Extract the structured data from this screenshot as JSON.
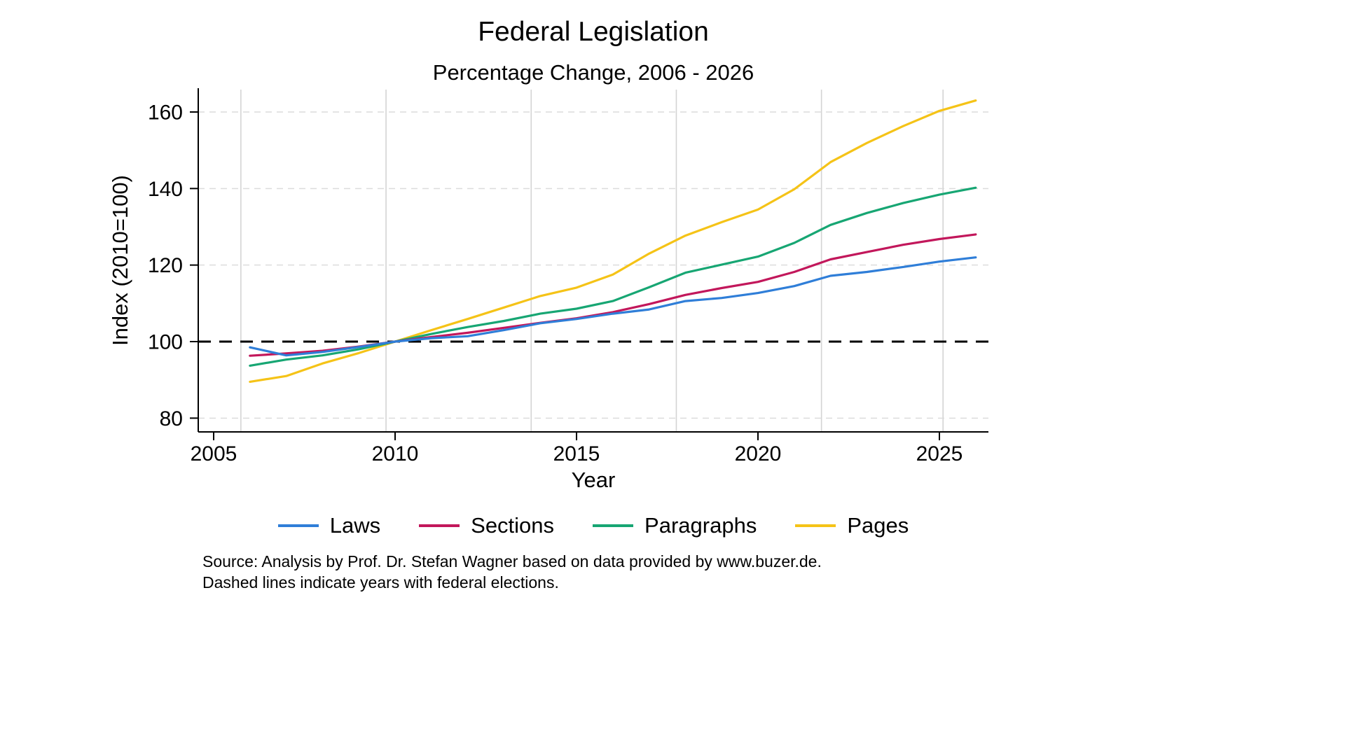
{
  "chart_data": {
    "type": "line",
    "title": "Federal Legislation",
    "subtitle": "Percentage Change, 2006 - 2026",
    "xlabel": "Year",
    "ylabel": "Index (2010=100)",
    "x": [
      2006,
      2007,
      2008,
      2009,
      2010,
      2011,
      2012,
      2013,
      2014,
      2015,
      2016,
      2017,
      2018,
      2019,
      2020,
      2021,
      2022,
      2023,
      2024,
      2025,
      2026
    ],
    "series": [
      {
        "name": "Laws",
        "color": "#2f7ed8",
        "values": [
          98.5,
          96.4,
          97.3,
          98.6,
          100,
          100.9,
          101.4,
          103.0,
          104.8,
          105.9,
          107.3,
          108.4,
          110.6,
          111.4,
          112.7,
          114.5,
          117.2,
          118.2,
          119.5,
          120.9,
          122.0
        ]
      },
      {
        "name": "Sections",
        "color": "#c2175b",
        "values": [
          96.3,
          96.9,
          97.6,
          98.7,
          100,
          101.2,
          102.3,
          103.6,
          104.9,
          106.1,
          107.7,
          109.8,
          112.2,
          114.0,
          115.6,
          118.2,
          121.5,
          123.4,
          125.3,
          126.8,
          128.0
        ]
      },
      {
        "name": "Paragraphs",
        "color": "#17a673",
        "values": [
          93.7,
          95.3,
          96.4,
          98.0,
          100,
          102.0,
          103.8,
          105.4,
          107.3,
          108.6,
          110.6,
          114.2,
          118.0,
          120.1,
          122.2,
          125.8,
          130.5,
          133.6,
          136.2,
          138.4,
          140.2
        ]
      },
      {
        "name": "Pages",
        "color": "#f5c317",
        "values": [
          89.5,
          91.0,
          94.3,
          97.0,
          100,
          103.0,
          105.9,
          108.9,
          111.9,
          114.1,
          117.5,
          123.0,
          127.7,
          131.2,
          134.5,
          139.8,
          146.9,
          151.9,
          156.3,
          160.3,
          163.0
        ]
      }
    ],
    "xticks": [
      2005,
      2010,
      2015,
      2020,
      2025
    ],
    "yticks": [
      80,
      100,
      120,
      140,
      160
    ],
    "xlim": [
      2004.6,
      2026.4
    ],
    "ylim": [
      76,
      166
    ],
    "grid": {
      "h_color": "#dcdcdc",
      "v_color": "#d4d4d4"
    },
    "reference_line": 100,
    "election_marks": [
      2005.75,
      2009.75,
      2013.75,
      2017.75,
      2021.75,
      2025.1
    ],
    "legend_position": "bottom"
  },
  "notes": {
    "source": "Source: Analysis by Prof. Dr. Stefan Wagner based on data provided by www.buzer.de.",
    "elections": "Dashed lines indicate years with federal elections."
  }
}
